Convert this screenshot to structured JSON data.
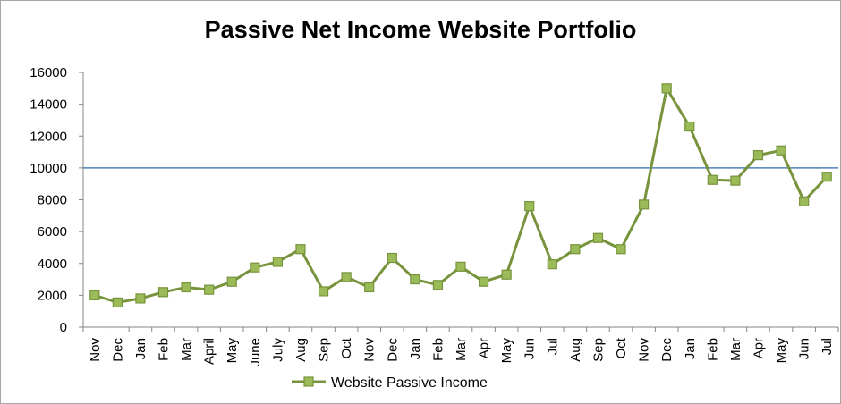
{
  "colors": {
    "series": "#77933c",
    "marker_fill": "#9bbb59",
    "reference_line": "#4f81bd",
    "axis": "#868686"
  },
  "chart_data": {
    "type": "line",
    "title": "Passive Net Income Website Portfolio",
    "xlabel": "",
    "ylabel": "",
    "ylim": [
      0,
      16000
    ],
    "yticks": [
      0,
      2000,
      4000,
      6000,
      8000,
      10000,
      12000,
      14000,
      16000
    ],
    "grid": false,
    "legend_position": "bottom",
    "categories": [
      "Nov",
      "Dec",
      "Jan",
      "Feb",
      "Mar",
      "April",
      "May",
      "June",
      "July",
      "Aug",
      "Sep",
      "Oct",
      "Nov",
      "Dec",
      "Jan",
      "Feb",
      "Mar",
      "Apr",
      "May",
      "Jun",
      "Jul",
      "Aug",
      "Sep",
      "Oct",
      "Nov",
      "Dec",
      "Jan",
      "Feb",
      "Mar",
      "Apr",
      "May",
      "Jun",
      "Jul"
    ],
    "series": [
      {
        "name": "Website Passive Income",
        "values": [
          2000,
          1550,
          1800,
          2200,
          2500,
          2350,
          2850,
          3750,
          4100,
          4900,
          2250,
          3150,
          2500,
          4350,
          3000,
          2650,
          3800,
          2850,
          3300,
          7600,
          3950,
          4900,
          5600,
          4900,
          7700,
          15000,
          12600,
          9250,
          9200,
          10800,
          11100,
          7900,
          9450
        ]
      }
    ],
    "reference_line": {
      "y": 10000
    }
  }
}
